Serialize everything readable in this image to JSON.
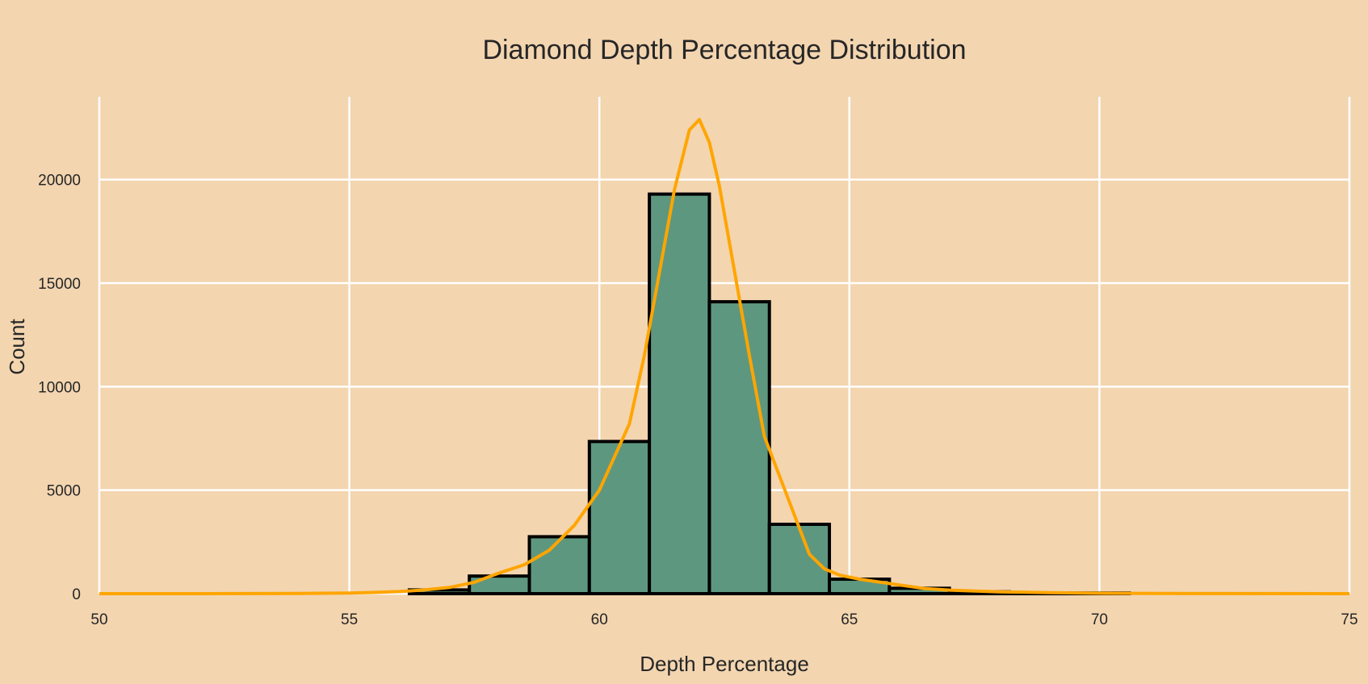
{
  "chart_data": {
    "type": "bar",
    "title": "Diamond Depth Percentage Distribution",
    "xlabel": "Depth Percentage",
    "ylabel": "Count",
    "xlim": [
      50,
      75
    ],
    "ylim": [
      0,
      24000
    ],
    "xticks": [
      50,
      55,
      60,
      65,
      70,
      75
    ],
    "yticks": [
      0,
      5000,
      10000,
      15000,
      20000
    ],
    "grid": true,
    "colors": {
      "background": "#f3d5b0",
      "bar_fill": "#5e977f",
      "bar_edge": "#000000",
      "kde_line": "#ffa500",
      "grid": "#ffffff"
    },
    "histogram": {
      "bin_edges": [
        56.2,
        57.4,
        58.6,
        59.8,
        61.0,
        62.2,
        63.4,
        64.6,
        65.8,
        67.0,
        68.2,
        69.4,
        70.6
      ],
      "counts": [
        180,
        850,
        2750,
        7350,
        19300,
        14100,
        3350,
        700,
        260,
        90,
        30,
        30
      ]
    },
    "kde": {
      "x": [
        50,
        52,
        54,
        55,
        55.5,
        56,
        56.5,
        57,
        57.5,
        58,
        58.5,
        59,
        59.5,
        60,
        60.3,
        60.6,
        60.9,
        61.2,
        61.5,
        61.8,
        62.0,
        62.2,
        62.4,
        62.7,
        63.0,
        63.3,
        63.6,
        63.9,
        64.2,
        64.5,
        64.8,
        65.2,
        65.6,
        66,
        66.5,
        67,
        68,
        69,
        70,
        72,
        75
      ],
      "y": [
        0,
        0,
        10,
        30,
        60,
        100,
        180,
        300,
        550,
        1000,
        1400,
        2100,
        3300,
        5000,
        6600,
        8200,
        11500,
        15500,
        19500,
        22400,
        22900,
        21800,
        19700,
        15600,
        11500,
        7600,
        5700,
        3800,
        1900,
        1200,
        900,
        700,
        560,
        420,
        250,
        170,
        90,
        45,
        20,
        5,
        0
      ]
    }
  }
}
